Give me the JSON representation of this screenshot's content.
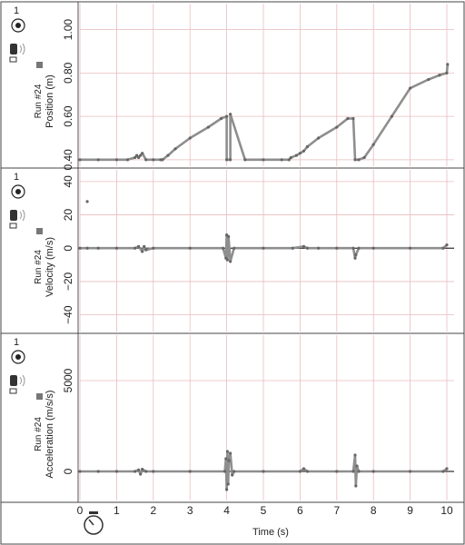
{
  "x_axis": {
    "title": "Time  (s)",
    "ticks": [
      "0",
      "1",
      "2",
      "3",
      "4",
      "5",
      "6",
      "7",
      "8",
      "9",
      "10"
    ]
  },
  "colors": {
    "data": "#8e8e8e",
    "grid": "#e8bcbc",
    "frame": "#333333",
    "zero": "#333333"
  },
  "icons": {
    "sensor": "motion-sensor-icon",
    "stopwatch": "stopwatch-icon",
    "probe": "probe-head-icon"
  },
  "chart_data": [
    {
      "type": "line",
      "sensor_number": "1",
      "run_label": "Run #24",
      "ylabel": "Position  (m)",
      "xlim": [
        0,
        10
      ],
      "ylim": [
        0.37,
        1.12
      ],
      "yticks": [
        0.4,
        0.6,
        0.8,
        1.0
      ],
      "ytick_labels": [
        "0.40",
        "0.60",
        "0.80",
        "1.00"
      ],
      "zero_line": false,
      "x": [
        0.0,
        0.5,
        1.0,
        1.3,
        1.5,
        1.55,
        1.6,
        1.65,
        1.7,
        1.8,
        2.0,
        2.2,
        2.25,
        2.4,
        2.6,
        3.0,
        3.5,
        3.85,
        4.0,
        4.0,
        4.1,
        4.1,
        4.5,
        5.0,
        5.5,
        5.7,
        5.75,
        5.9,
        6.0,
        6.1,
        6.2,
        6.5,
        7.0,
        7.3,
        7.45,
        7.5,
        7.6,
        7.75,
        8.0,
        8.5,
        9.0,
        9.5,
        9.8,
        10.0,
        10.02
      ],
      "y": [
        0.4,
        0.4,
        0.4,
        0.4,
        0.41,
        0.42,
        0.41,
        0.42,
        0.43,
        0.4,
        0.4,
        0.4,
        0.4,
        0.42,
        0.45,
        0.5,
        0.55,
        0.59,
        0.6,
        0.4,
        0.4,
        0.61,
        0.4,
        0.4,
        0.4,
        0.4,
        0.41,
        0.42,
        0.43,
        0.44,
        0.46,
        0.5,
        0.55,
        0.59,
        0.59,
        0.4,
        0.4,
        0.41,
        0.47,
        0.6,
        0.73,
        0.77,
        0.79,
        0.8,
        0.84
      ]
    },
    {
      "type": "line",
      "sensor_number": "1",
      "run_label": "Run #24",
      "ylabel": "Velocity  (m/s)",
      "xlim": [
        0,
        10
      ],
      "ylim": [
        -50,
        47
      ],
      "yticks": [
        -40,
        -20,
        0,
        20,
        40
      ],
      "ytick_labels": [
        "−40",
        "−20",
        "0",
        "20",
        "40"
      ],
      "zero_line": true,
      "x": [
        0.0,
        0.2,
        0.5,
        1.0,
        1.5,
        1.6,
        1.7,
        1.75,
        1.8,
        2.0,
        3.0,
        3.9,
        3.98,
        4.0,
        4.02,
        4.05,
        4.1,
        4.2,
        5.0,
        5.8,
        6.1,
        6.2,
        6.5,
        7.0,
        7.45,
        7.5,
        7.52,
        7.6,
        8.0,
        9.0,
        9.9,
        10.0
      ],
      "y": [
        0,
        0,
        0,
        0,
        0,
        1,
        -2,
        1,
        -1,
        0,
        0,
        0,
        -6,
        8,
        -7,
        7,
        -8,
        0,
        0,
        0,
        1,
        0,
        0,
        0,
        0,
        -6,
        -4,
        0,
        0,
        0,
        0,
        2
      ],
      "extra_points": [
        {
          "x": 0.2,
          "y": 28
        }
      ]
    },
    {
      "type": "line",
      "sensor_number": "1",
      "run_label": "Run #24",
      "ylabel": "Acceleration  (m/s/s)",
      "xlim": [
        0,
        10
      ],
      "ylim": [
        -1600,
        7500
      ],
      "yticks": [
        0,
        5000
      ],
      "ytick_labels": [
        "0",
        "5000"
      ],
      "zero_line": true,
      "x": [
        0.0,
        0.5,
        1.0,
        1.5,
        1.6,
        1.65,
        1.7,
        1.8,
        2.0,
        3.0,
        3.95,
        3.98,
        4.0,
        4.02,
        4.04,
        4.06,
        4.1,
        4.15,
        4.2,
        5.0,
        6.0,
        6.1,
        6.2,
        7.0,
        7.45,
        7.5,
        7.52,
        7.55,
        7.6,
        8.0,
        9.0,
        9.9,
        10.0
      ],
      "y": [
        0,
        0,
        0,
        0,
        80,
        -150,
        120,
        0,
        0,
        0,
        0,
        700,
        -1000,
        1100,
        -700,
        600,
        1000,
        -200,
        0,
        0,
        0,
        150,
        0,
        0,
        0,
        900,
        -800,
        300,
        0,
        0,
        0,
        0,
        150
      ]
    }
  ]
}
